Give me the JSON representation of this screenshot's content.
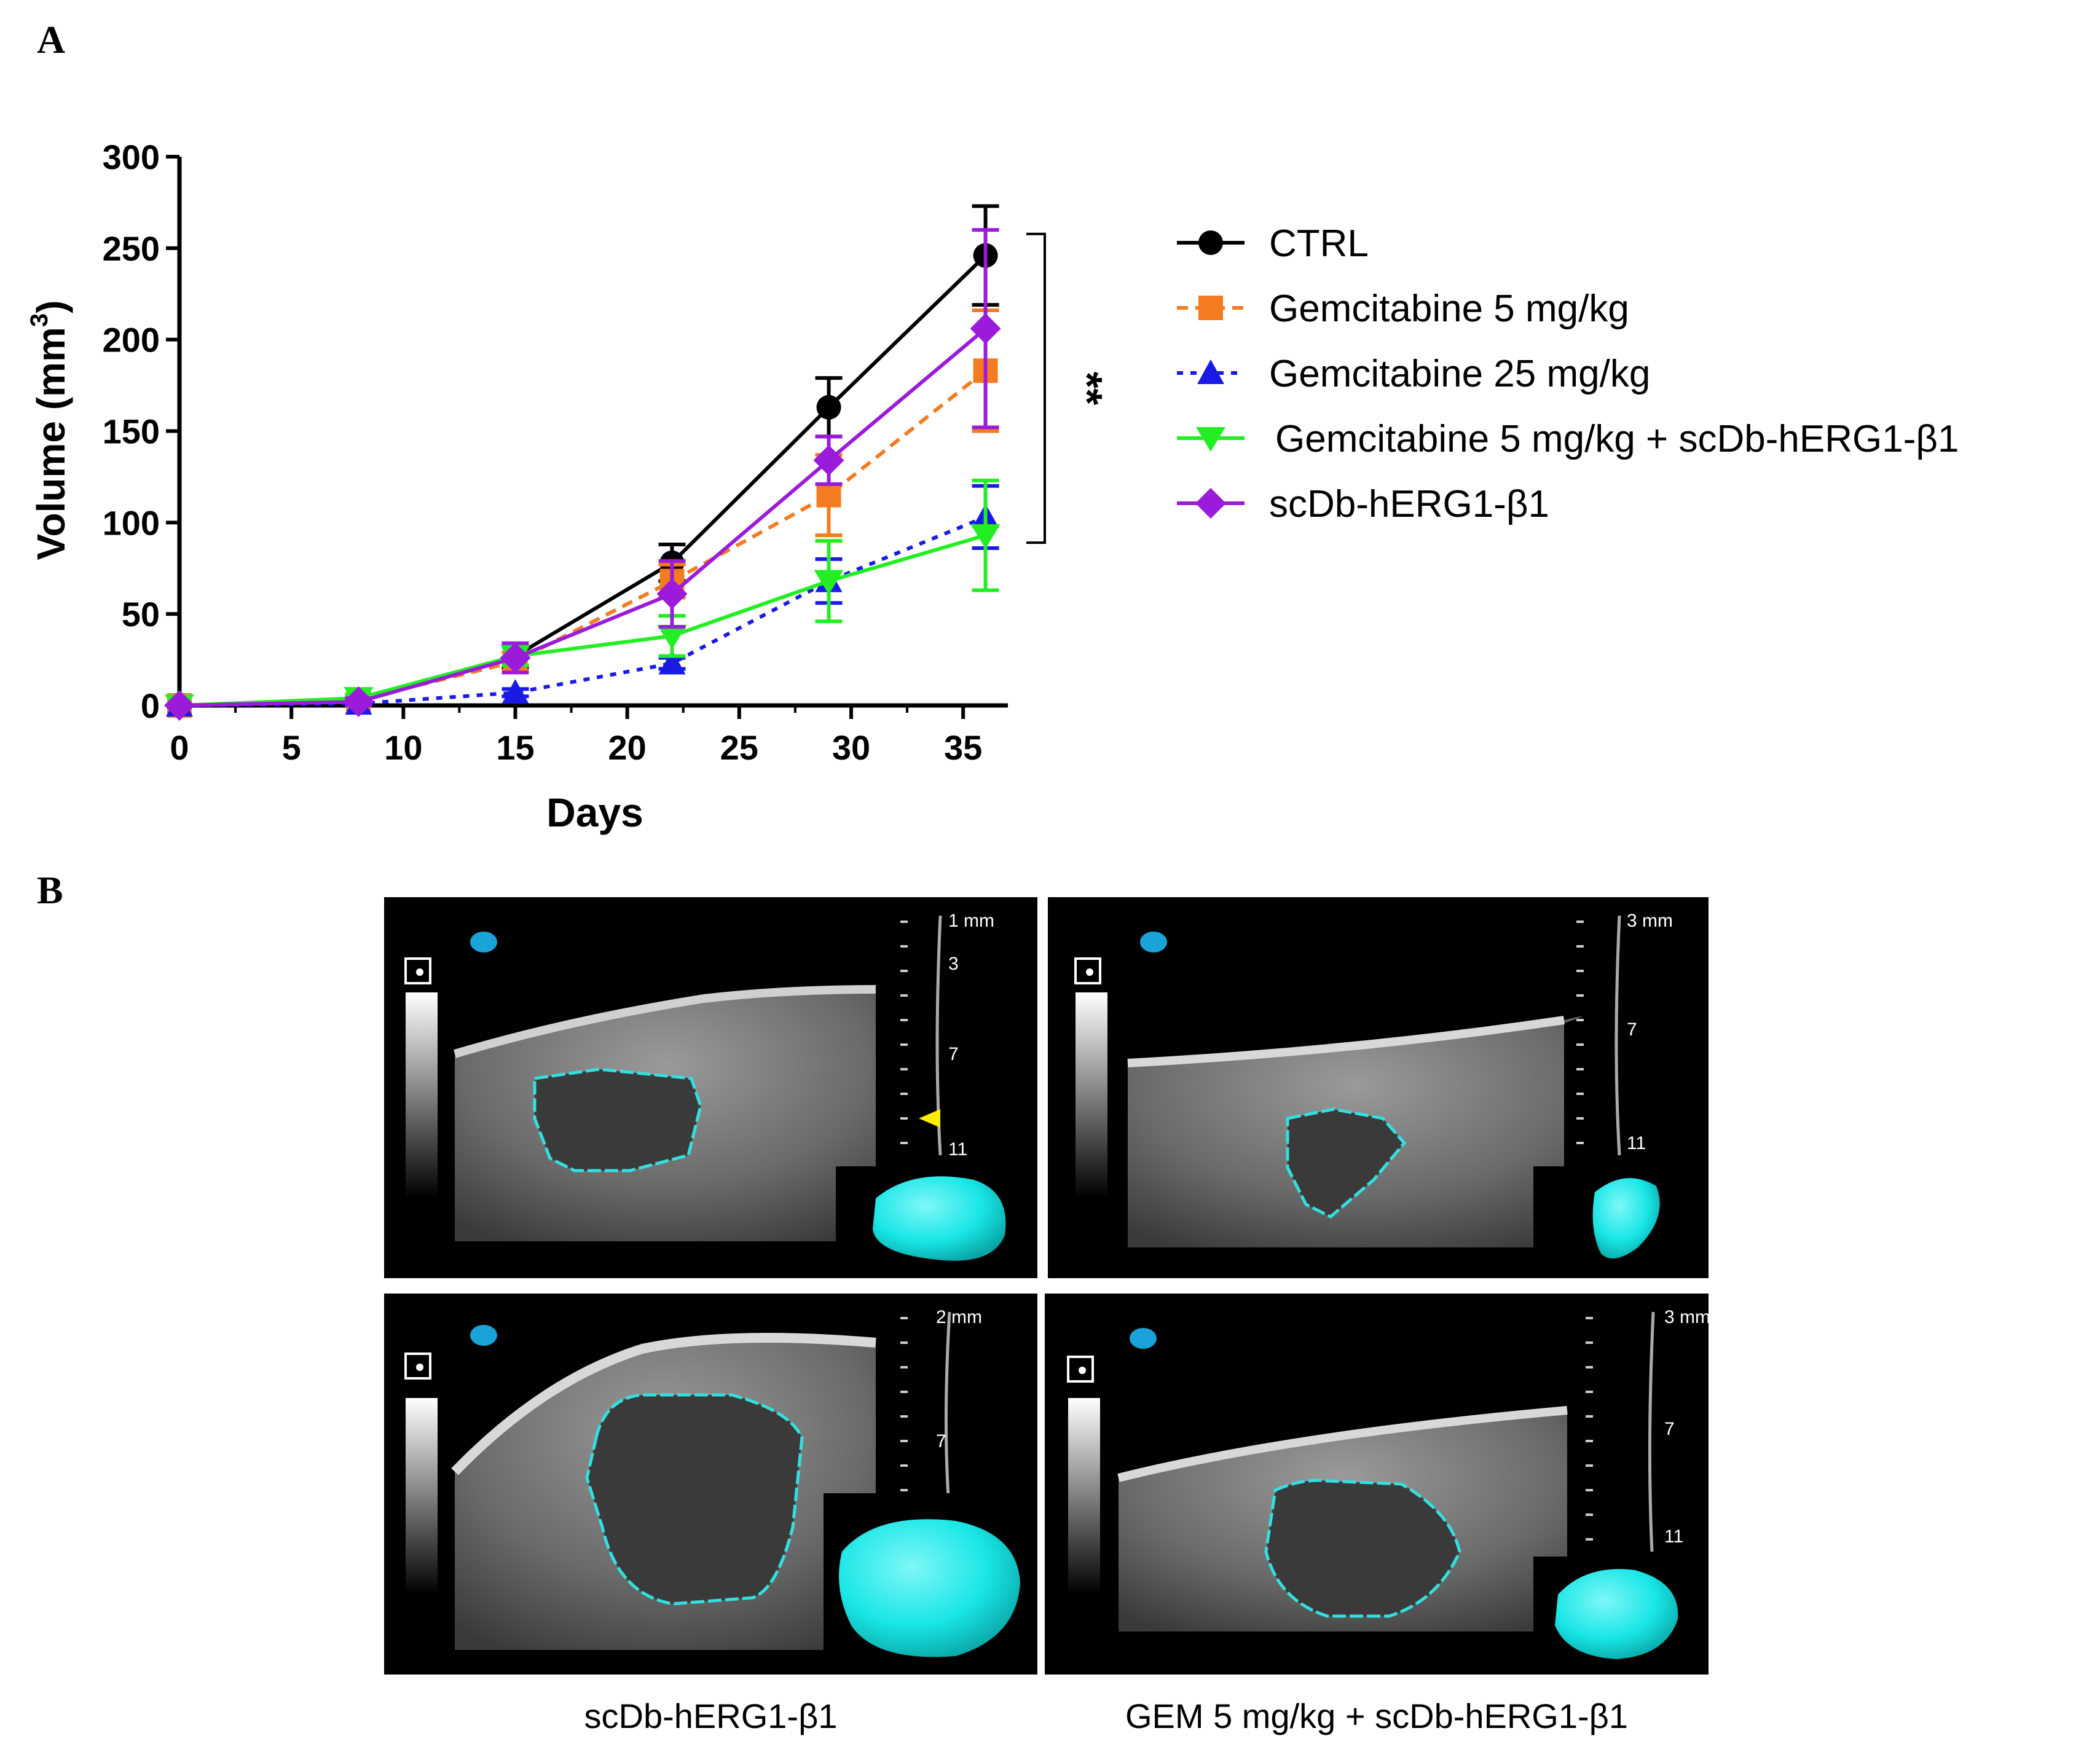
{
  "panel_labels": {
    "a": "A",
    "b": "B"
  },
  "chart_data": {
    "type": "line",
    "xlabel": "Days",
    "ylabel_main": "Volume (mm",
    "ylabel_sup": "3",
    "ylabel_close": ")",
    "xlim": [
      0,
      37
    ],
    "ylim": [
      0,
      300
    ],
    "xticks": [
      0,
      5,
      10,
      15,
      20,
      25,
      30,
      35
    ],
    "yticks": [
      0,
      50,
      100,
      150,
      200,
      250,
      300
    ],
    "legend_position": "right",
    "series": [
      {
        "name": "CTRL",
        "color": "#000000",
        "dash": "solid",
        "marker": "circle",
        "x": [
          0,
          8,
          15,
          22,
          29,
          36
        ],
        "y": [
          0,
          3,
          27,
          78,
          163,
          246
        ],
        "err": [
          0,
          2,
          6,
          10,
          16,
          27
        ]
      },
      {
        "name": "Gemcitabine 5 mg/kg",
        "color": "#F47C20",
        "dash": "dashed",
        "marker": "square",
        "x": [
          0,
          8,
          15,
          22,
          29,
          36
        ],
        "y": [
          0,
          3,
          24,
          68,
          115,
          183
        ],
        "err": [
          0,
          2,
          5,
          9,
          22,
          33
        ]
      },
      {
        "name": "Gemcitabine 25 mg/kg",
        "color": "#1A1AE6",
        "dash": "dotted",
        "marker": "triangle-up",
        "x": [
          0,
          8,
          15,
          22,
          29,
          36
        ],
        "y": [
          0,
          1,
          7,
          23,
          68,
          103
        ],
        "err": [
          0,
          1,
          2,
          3,
          12,
          17
        ]
      },
      {
        "name": "Gemcitabine 5 mg/kg + scDb-hERG1-β1",
        "color": "#22EE22",
        "dash": "solid",
        "marker": "triangle-down",
        "x": [
          0,
          8,
          15,
          22,
          29,
          36
        ],
        "y": [
          0,
          4,
          27,
          38,
          68,
          93
        ],
        "err": [
          0,
          2,
          5,
          11,
          22,
          30
        ]
      },
      {
        "name": "scDb-hERG1-β1",
        "color": "#9B1BDB",
        "dash": "solid",
        "marker": "diamond",
        "x": [
          0,
          8,
          15,
          22,
          29,
          36
        ],
        "y": [
          0,
          2,
          26,
          61,
          134,
          206
        ],
        "err": [
          0,
          2,
          8,
          18,
          13,
          54
        ]
      }
    ],
    "annotation": {
      "text": "**",
      "bracket_from": 246,
      "bracket_to": 93
    }
  },
  "ultrasound": {
    "panels": [
      {
        "depth_labels": [
          "1 mm",
          "3",
          "7",
          "11"
        ]
      },
      {
        "depth_labels": [
          "3 mm",
          "7",
          "11"
        ]
      },
      {
        "depth_labels": [
          "2 mm",
          "7"
        ]
      },
      {
        "depth_labels": [
          "3 mm",
          "7",
          "11"
        ]
      }
    ],
    "captions": [
      "scDb-hERG1-β1",
      "GEM 5 mg/kg + scDb-hERG1-β1"
    ],
    "outline_color": "#33E0E0",
    "model_color": "#19E6E6"
  }
}
